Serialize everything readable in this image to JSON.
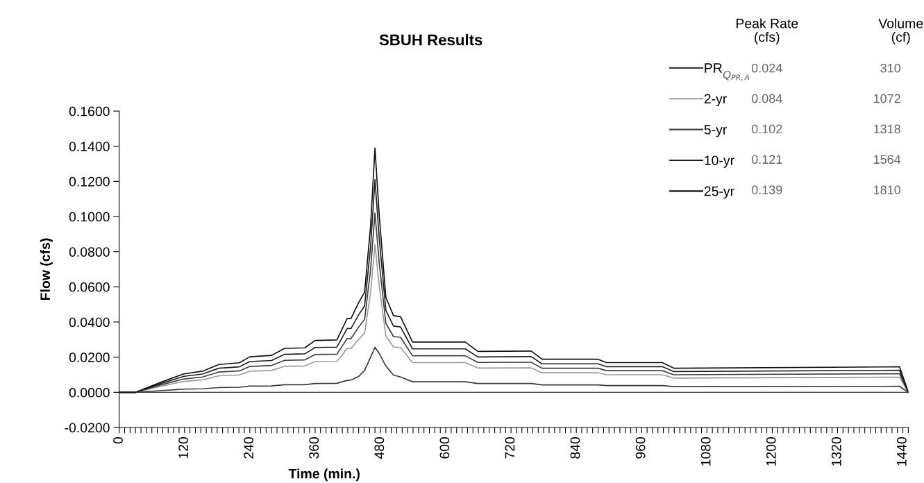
{
  "chart_data": {
    "type": "line",
    "title": "SBUH Results",
    "xlabel": "Time (min.)",
    "ylabel": "Flow (cfs)",
    "x": [
      0,
      30,
      79,
      119,
      153,
      183,
      221,
      240,
      280,
      304,
      341,
      360,
      400,
      419,
      426,
      440,
      451,
      462,
      470,
      478,
      490,
      504,
      517,
      539,
      636,
      659,
      757,
      777,
      880,
      895,
      998,
      1019,
      1434,
      1450
    ],
    "series": [
      {
        "name": "PR",
        "color": "#3a3a3a",
        "values": [
          0,
          0,
          0.001,
          0.0018,
          0.002,
          0.0027,
          0.0029,
          0.0035,
          0.0036,
          0.0043,
          0.0043,
          0.005,
          0.0051,
          0.0068,
          0.007,
          0.009,
          0.0125,
          0.02,
          0.0256,
          0.022,
          0.015,
          0.0098,
          0.0087,
          0.006,
          0.006,
          0.005,
          0.005,
          0.0042,
          0.0042,
          0.0038,
          0.0038,
          0.0032,
          0.0034,
          0
        ]
      },
      {
        "name": "2-yr",
        "color": "#9a9a9a",
        "values": [
          0,
          0,
          0.0036,
          0.0062,
          0.0071,
          0.0094,
          0.0099,
          0.012,
          0.0124,
          0.0148,
          0.015,
          0.0175,
          0.0176,
          0.0249,
          0.0249,
          0.0302,
          0.0337,
          0.057,
          0.084,
          0.06,
          0.032,
          0.0258,
          0.0255,
          0.0169,
          0.0169,
          0.0138,
          0.0139,
          0.0111,
          0.0111,
          0.01,
          0.01,
          0.0081,
          0.0086,
          0
        ]
      },
      {
        "name": "5-yr",
        "color": "#404040",
        "values": [
          0,
          0,
          0.0044,
          0.0076,
          0.0087,
          0.0115,
          0.0122,
          0.0147,
          0.0153,
          0.0182,
          0.0184,
          0.0215,
          0.0217,
          0.0306,
          0.0306,
          0.0371,
          0.0415,
          0.07,
          0.102,
          0.073,
          0.0393,
          0.0317,
          0.0313,
          0.0208,
          0.0208,
          0.017,
          0.0171,
          0.0137,
          0.0137,
          0.0123,
          0.0123,
          0.01,
          0.0106,
          0
        ]
      },
      {
        "name": "10-yr",
        "color": "#202020",
        "values": [
          0,
          0,
          0.0052,
          0.0091,
          0.0104,
          0.0137,
          0.0145,
          0.0175,
          0.0181,
          0.0216,
          0.0219,
          0.0255,
          0.0257,
          0.0363,
          0.0363,
          0.0441,
          0.0492,
          0.083,
          0.121,
          0.087,
          0.0467,
          0.0377,
          0.0372,
          0.0247,
          0.0247,
          0.0201,
          0.0203,
          0.0162,
          0.0162,
          0.0146,
          0.0146,
          0.0118,
          0.0125,
          0
        ]
      },
      {
        "name": "25-yr",
        "color": "#101010",
        "values": [
          0,
          0,
          0.006,
          0.0105,
          0.012,
          0.0158,
          0.0168,
          0.0202,
          0.021,
          0.025,
          0.0253,
          0.0295,
          0.0298,
          0.042,
          0.042,
          0.051,
          0.057,
          0.095,
          0.139,
          0.1,
          0.054,
          0.0436,
          0.043,
          0.0286,
          0.0286,
          0.0233,
          0.0235,
          0.0188,
          0.0188,
          0.0169,
          0.0169,
          0.0137,
          0.0145,
          0
        ]
      }
    ],
    "xlim": [
      0,
      1450
    ],
    "xticks": [
      0,
      {
        "value": 10,
        "label": null
      },
      {
        "value": 20,
        "label": null
      },
      {
        "value": 30,
        "label": null
      },
      {
        "value": 40,
        "label": null
      },
      {
        "value": 50,
        "label": null
      },
      {
        "value": 60,
        "label": null
      },
      {
        "value": 70,
        "label": null
      },
      {
        "value": 80,
        "label": null
      },
      {
        "value": 90,
        "label": null
      },
      {
        "value": 100,
        "label": null
      },
      {
        "value": 110,
        "label": null
      },
      120,
      {
        "value": 130,
        "label": null
      },
      {
        "value": 140,
        "label": null
      },
      {
        "value": 150,
        "label": null
      },
      {
        "value": 160,
        "label": null
      },
      {
        "value": 170,
        "label": null
      },
      {
        "value": 180,
        "label": null
      },
      {
        "value": 190,
        "label": null
      },
      {
        "value": 200,
        "label": null
      },
      {
        "value": 210,
        "label": null
      },
      {
        "value": 220,
        "label": null
      },
      {
        "value": 230,
        "label": null
      },
      240,
      {
        "value": 250,
        "label": null
      },
      {
        "value": 260,
        "label": null
      },
      {
        "value": 270,
        "label": null
      },
      {
        "value": 280,
        "label": null
      },
      {
        "value": 290,
        "label": null
      },
      {
        "value": 300,
        "label": null
      },
      {
        "value": 310,
        "label": null
      },
      {
        "value": 320,
        "label": null
      },
      {
        "value": 330,
        "label": null
      },
      {
        "value": 340,
        "label": null
      },
      {
        "value": 350,
        "label": null
      },
      360,
      {
        "value": 370,
        "label": null
      },
      {
        "value": 380,
        "label": null
      },
      {
        "value": 390,
        "label": null
      },
      {
        "value": 400,
        "label": null
      },
      {
        "value": 410,
        "label": null
      },
      {
        "value": 420,
        "label": null
      },
      {
        "value": 430,
        "label": null
      },
      {
        "value": 440,
        "label": null
      },
      {
        "value": 450,
        "label": null
      },
      {
        "value": 460,
        "label": null
      },
      {
        "value": 470,
        "label": null
      },
      480,
      {
        "value": 490,
        "label": null
      },
      {
        "value": 500,
        "label": null
      },
      {
        "value": 510,
        "label": null
      },
      {
        "value": 520,
        "label": null
      },
      {
        "value": 530,
        "label": null
      },
      {
        "value": 540,
        "label": null
      },
      {
        "value": 550,
        "label": null
      },
      {
        "value": 560,
        "label": null
      },
      {
        "value": 570,
        "label": null
      },
      {
        "value": 580,
        "label": null
      },
      {
        "value": 590,
        "label": null
      },
      600,
      {
        "value": 610,
        "label": null
      },
      {
        "value": 620,
        "label": null
      },
      {
        "value": 630,
        "label": null
      },
      {
        "value": 640,
        "label": null
      },
      {
        "value": 650,
        "label": null
      },
      {
        "value": 660,
        "label": null
      },
      {
        "value": 670,
        "label": null
      },
      {
        "value": 680,
        "label": null
      },
      {
        "value": 690,
        "label": null
      },
      {
        "value": 700,
        "label": null
      },
      {
        "value": 710,
        "label": null
      },
      720,
      {
        "value": 730,
        "label": null
      },
      {
        "value": 740,
        "label": null
      },
      {
        "value": 750,
        "label": null
      },
      {
        "value": 760,
        "label": null
      },
      {
        "value": 770,
        "label": null
      },
      {
        "value": 780,
        "label": null
      },
      {
        "value": 790,
        "label": null
      },
      {
        "value": 800,
        "label": null
      },
      {
        "value": 810,
        "label": null
      },
      {
        "value": 820,
        "label": null
      },
      {
        "value": 830,
        "label": null
      },
      840,
      {
        "value": 850,
        "label": null
      },
      {
        "value": 860,
        "label": null
      },
      {
        "value": 870,
        "label": null
      },
      {
        "value": 880,
        "label": null
      },
      {
        "value": 890,
        "label": null
      },
      {
        "value": 900,
        "label": null
      },
      {
        "value": 910,
        "label": null
      },
      {
        "value": 920,
        "label": null
      },
      {
        "value": 930,
        "label": null
      },
      {
        "value": 940,
        "label": null
      },
      {
        "value": 950,
        "label": null
      },
      960,
      {
        "value": 970,
        "label": null
      },
      {
        "value": 980,
        "label": null
      },
      {
        "value": 990,
        "label": null
      },
      {
        "value": 1000,
        "label": null
      },
      {
        "value": 1010,
        "label": null
      },
      {
        "value": 1020,
        "label": null
      },
      {
        "value": 1030,
        "label": null
      },
      {
        "value": 1040,
        "label": null
      },
      {
        "value": 1050,
        "label": null
      },
      {
        "value": 1060,
        "label": null
      },
      {
        "value": 1070,
        "label": null
      },
      1080,
      {
        "value": 1090,
        "label": null
      },
      {
        "value": 1100,
        "label": null
      },
      {
        "value": 1110,
        "label": null
      },
      {
        "value": 1120,
        "label": null
      },
      {
        "value": 1130,
        "label": null
      },
      {
        "value": 1140,
        "label": null
      },
      {
        "value": 1150,
        "label": null
      },
      {
        "value": 1160,
        "label": null
      },
      {
        "value": 1170,
        "label": null
      },
      {
        "value": 1180,
        "label": null
      },
      {
        "value": 1190,
        "label": null
      },
      1200,
      {
        "value": 1210,
        "label": null
      },
      {
        "value": 1220,
        "label": null
      },
      {
        "value": 1230,
        "label": null
      },
      {
        "value": 1240,
        "label": null
      },
      {
        "value": 1250,
        "label": null
      },
      {
        "value": 1260,
        "label": null
      },
      {
        "value": 1270,
        "label": null
      },
      {
        "value": 1280,
        "label": null
      },
      {
        "value": 1290,
        "label": null
      },
      {
        "value": 1300,
        "label": null
      },
      {
        "value": 1310,
        "label": null
      },
      1320,
      {
        "value": 1330,
        "label": null
      },
      {
        "value": 1340,
        "label": null
      },
      {
        "value": 1350,
        "label": null
      },
      {
        "value": 1360,
        "label": null
      },
      {
        "value": 1370,
        "label": null
      },
      {
        "value": 1380,
        "label": null
      },
      {
        "value": 1390,
        "label": null
      },
      {
        "value": 1400,
        "label": null
      },
      {
        "value": 1410,
        "label": null
      },
      {
        "value": 1420,
        "label": null
      },
      {
        "value": 1430,
        "label": null
      },
      1440,
      {
        "value": 1450,
        "label": null
      }
    ],
    "ref_lines": [
      {
        "axis": "y",
        "value": 0,
        "color": "#000000",
        "line_style": "solid"
      }
    ],
    "ylim": [
      -0.02,
      0.16
    ],
    "yticks": [
      {
        "value": -0.02,
        "label": "-0.0200"
      },
      {
        "value": 0,
        "label": "0.0000"
      },
      {
        "value": 0.02,
        "label": "0.0200"
      },
      {
        "value": 0.04,
        "label": "0.0400"
      },
      {
        "value": 0.06,
        "label": "0.0600"
      },
      {
        "value": 0.08,
        "label": "0.0800"
      },
      {
        "value": 0.1,
        "label": "0.1000"
      },
      {
        "value": 0.12,
        "label": "0.1200"
      },
      {
        "value": 0.14,
        "label": "0.1400"
      },
      {
        "value": 0.16,
        "label": "0.1600"
      }
    ],
    "annotations": [
      "Peak Rate\n(cfs)",
      "Volume\n(cf)",
      "0.024",
      "310",
      "0.084",
      "1072",
      "0.102",
      "1318",
      "0.121",
      "1564",
      "0.139",
      "1810",
      "Q$_{PR,A}$"
    ],
    "legend": "top right",
    "grid": false,
    "marker": "none",
    "line_style": "solid"
  }
}
